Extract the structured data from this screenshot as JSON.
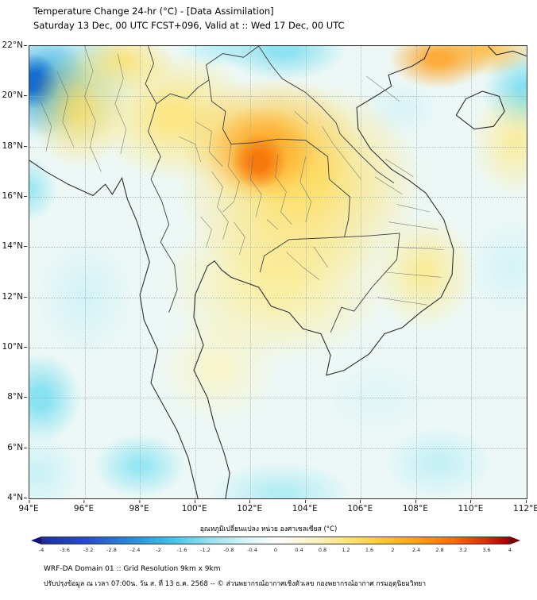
{
  "header": {
    "title": "Temperature Change 24-hr (°C) - [Data Assimilation]",
    "subtitle": "Saturday 13 Dec, 00 UTC FCST+096, Valid at :: Wed 17 Dec, 00 UTC"
  },
  "footer": {
    "line1": "WRF-DA Domain 01 :: Grid Resolution 9km x 9km",
    "line2": "ปรับปรุงข้อมูล ณ เวลา 07:00น. วัน ส. ที่ 13 ธ.ค. 2568 -- © ส่วนพยากรณ์อากาศเชิงตัวเลข กองพยากรณ์อากาศ กรมอุตุนิยมวิทยา"
  },
  "chart_data": {
    "type": "heatmap",
    "title": "Temperature Change 24-hr (°C) - [Data Assimilation]",
    "subtitle": "Saturday 13 Dec, 00 UTC FCST+096, Valid at :: Wed 17 Dec, 00 UTC",
    "grid": "dotted, every 2 degrees",
    "x_axis": {
      "min": 94,
      "max": 112,
      "unit": "°E",
      "ticks": [
        "94°E",
        "96°E",
        "98°E",
        "100°E",
        "102°E",
        "104°E",
        "106°E",
        "108°E",
        "110°E",
        "112°E"
      ]
    },
    "y_axis": {
      "min": 4,
      "max": 22,
      "unit": "°N",
      "ticks": [
        "22°N",
        "20°N",
        "18°N",
        "16°N",
        "14°N",
        "12°N",
        "10°N",
        "8°N",
        "6°N",
        "4°N"
      ]
    },
    "colorbar": {
      "title": "อุณหภูมิเปลี่ยนแปลง หน่วย องศาเซลเซียส (°C)",
      "min": -4,
      "max": 4,
      "tick_values": [
        "-4",
        "-3.6",
        "-3.2",
        "-2.8",
        "-2.4",
        "-2",
        "-1.6",
        "-1.2",
        "-0.8",
        "-0.4",
        "0",
        "0.4",
        "0.8",
        "1.2",
        "1.6",
        "2",
        "2.4",
        "2.8",
        "3.2",
        "3.6",
        "4"
      ],
      "left_arrow_color": "#14137a",
      "right_arrow_color": "#7a0000",
      "stops": [
        {
          "value": -4.0,
          "color": "#1c2f9e"
        },
        {
          "value": -3.2,
          "color": "#2451c8"
        },
        {
          "value": -2.4,
          "color": "#2e8fd8"
        },
        {
          "value": -1.8,
          "color": "#3fc0ea"
        },
        {
          "value": -1.2,
          "color": "#8fdff2"
        },
        {
          "value": -0.6,
          "color": "#cdf2f8"
        },
        {
          "value": 0.0,
          "color": "#ffffff"
        },
        {
          "value": 0.6,
          "color": "#fdf3c9"
        },
        {
          "value": 1.2,
          "color": "#ffe483"
        },
        {
          "value": 1.8,
          "color": "#ffc73e"
        },
        {
          "value": 2.4,
          "color": "#ffa01e"
        },
        {
          "value": 3.0,
          "color": "#f4720e"
        },
        {
          "value": 3.6,
          "color": "#cc3408"
        },
        {
          "value": 4.0,
          "color": "#9e0000"
        }
      ]
    },
    "base_color": "#edf8f6",
    "anomalies": [
      {
        "lon": 102.3,
        "lat": 17.4,
        "rx": 1.0,
        "ry": 1.1,
        "hold": 30,
        "value": 3.2,
        "color": "rgba(246,115,8,0.9)"
      },
      {
        "lon": 102.4,
        "lat": 17.8,
        "rx": 2.0,
        "ry": 1.8,
        "hold": 15,
        "value": 2.6,
        "color": "rgba(255,152,22,0.75)"
      },
      {
        "lon": 102.7,
        "lat": 18.2,
        "rx": 3.2,
        "ry": 2.6,
        "hold": 10,
        "value": 2.0,
        "color": "rgba(255,190,45,0.7)"
      },
      {
        "lon": 108.8,
        "lat": 21.5,
        "rx": 1.8,
        "ry": 1.2,
        "hold": 20,
        "value": 2.4,
        "color": "rgba(255,160,28,0.85)"
      },
      {
        "lon": 110.5,
        "lat": 21.9,
        "rx": 2.0,
        "ry": 1.1,
        "hold": 10,
        "value": 2.2,
        "color": "rgba(255,178,38,0.75)"
      },
      {
        "lon": 103.8,
        "lat": 16.5,
        "rx": 4.5,
        "ry": 4.2,
        "hold": 20,
        "value": 1.4,
        "color": "rgba(255,222,95,0.85)"
      },
      {
        "lon": 99.3,
        "lat": 19.2,
        "rx": 3.0,
        "ry": 2.6,
        "hold": 15,
        "value": 1.2,
        "color": "rgba(255,226,105,0.8)"
      },
      {
        "lon": 95.8,
        "lat": 19.5,
        "rx": 1.8,
        "ry": 2.4,
        "hold": 15,
        "value": 1.2,
        "color": "rgba(255,218,85,0.75)"
      },
      {
        "lon": 97.4,
        "lat": 21.4,
        "rx": 1.9,
        "ry": 1.3,
        "hold": 10,
        "value": 1.2,
        "color": "rgba(255,222,95,0.75)"
      },
      {
        "lon": 103.0,
        "lat": 12.6,
        "rx": 4.2,
        "ry": 3.2,
        "hold": 15,
        "value": 1.0,
        "color": "rgba(255,235,135,0.75)"
      },
      {
        "lon": 108.3,
        "lat": 13.0,
        "rx": 1.9,
        "ry": 2.3,
        "hold": 10,
        "value": 1.0,
        "color": "rgba(255,230,115,0.7)"
      },
      {
        "lon": 111.6,
        "lat": 18.2,
        "rx": 1.7,
        "ry": 2.2,
        "hold": 10,
        "value": 0.8,
        "color": "rgba(255,230,120,0.65)"
      },
      {
        "lon": 100.8,
        "lat": 9.2,
        "rx": 2.2,
        "ry": 2.2,
        "hold": 10,
        "value": 0.6,
        "color": "rgba(255,242,175,0.6)"
      },
      {
        "lon": 94.2,
        "lat": 20.6,
        "rx": 0.9,
        "ry": 1.1,
        "hold": 30,
        "value": -3.0,
        "color": "rgba(18,105,205,0.95)"
      },
      {
        "lon": 94.6,
        "lat": 20.4,
        "rx": 1.7,
        "ry": 2.0,
        "hold": 15,
        "value": -2.2,
        "color": "rgba(45,160,225,0.8)"
      },
      {
        "lon": 95.1,
        "lat": 20.7,
        "rx": 2.8,
        "ry": 2.8,
        "hold": 10,
        "value": -1.4,
        "color": "rgba(120,215,238,0.8)"
      },
      {
        "lon": 103.2,
        "lat": 21.9,
        "rx": 2.3,
        "ry": 1.3,
        "hold": 20,
        "value": -1.2,
        "color": "rgba(125,222,240,0.85)"
      },
      {
        "lon": 100.9,
        "lat": 22.0,
        "rx": 1.6,
        "ry": 0.9,
        "hold": 10,
        "value": -0.8,
        "color": "rgba(170,235,246,0.8)"
      },
      {
        "lon": 112.0,
        "lat": 20.2,
        "rx": 1.6,
        "ry": 1.7,
        "hold": 20,
        "value": -1.2,
        "color": "rgba(115,220,240,0.85)"
      },
      {
        "lon": 94.0,
        "lat": 16.3,
        "rx": 1.0,
        "ry": 1.3,
        "hold": 15,
        "value": -1.0,
        "color": "rgba(140,228,243,0.8)"
      },
      {
        "lon": 94.4,
        "lat": 8.0,
        "rx": 1.5,
        "ry": 1.8,
        "hold": 20,
        "value": -1.2,
        "color": "rgba(118,222,240,0.85)"
      },
      {
        "lon": 98.0,
        "lat": 5.3,
        "rx": 1.7,
        "ry": 1.3,
        "hold": 15,
        "value": -1.0,
        "color": "rgba(130,226,242,0.8)"
      },
      {
        "lon": 103.1,
        "lat": 4.2,
        "rx": 2.6,
        "ry": 1.3,
        "hold": 10,
        "value": -0.8,
        "color": "rgba(158,232,244,0.75)"
      },
      {
        "lon": 108.8,
        "lat": 5.4,
        "rx": 2.0,
        "ry": 1.5,
        "hold": 10,
        "value": -0.6,
        "color": "rgba(178,236,246,0.7)"
      },
      {
        "lon": 111.4,
        "lat": 13.2,
        "rx": 1.7,
        "ry": 2.1,
        "hold": 10,
        "value": -0.4,
        "color": "rgba(205,242,248,0.7)"
      },
      {
        "lon": 96.0,
        "lat": 12.0,
        "rx": 1.9,
        "ry": 2.6,
        "hold": 10,
        "value": -0.4,
        "color": "rgba(196,240,246,0.6)"
      },
      {
        "lon": 106.6,
        "lat": 8.0,
        "rx": 2.2,
        "ry": 1.6,
        "hold": 10,
        "value": -0.3,
        "color": "rgba(214,244,248,0.6)"
      },
      {
        "lon": 107.5,
        "lat": 19.5,
        "rx": 1.5,
        "ry": 1.2,
        "hold": 10,
        "value": -0.3,
        "color": "rgba(205,240,246,0.6)"
      },
      {
        "lon": 94.3,
        "lat": 5.0,
        "rx": 1.6,
        "ry": 1.6,
        "hold": 10,
        "value": -0.6,
        "color": "rgba(185,238,246,0.65)"
      }
    ]
  }
}
